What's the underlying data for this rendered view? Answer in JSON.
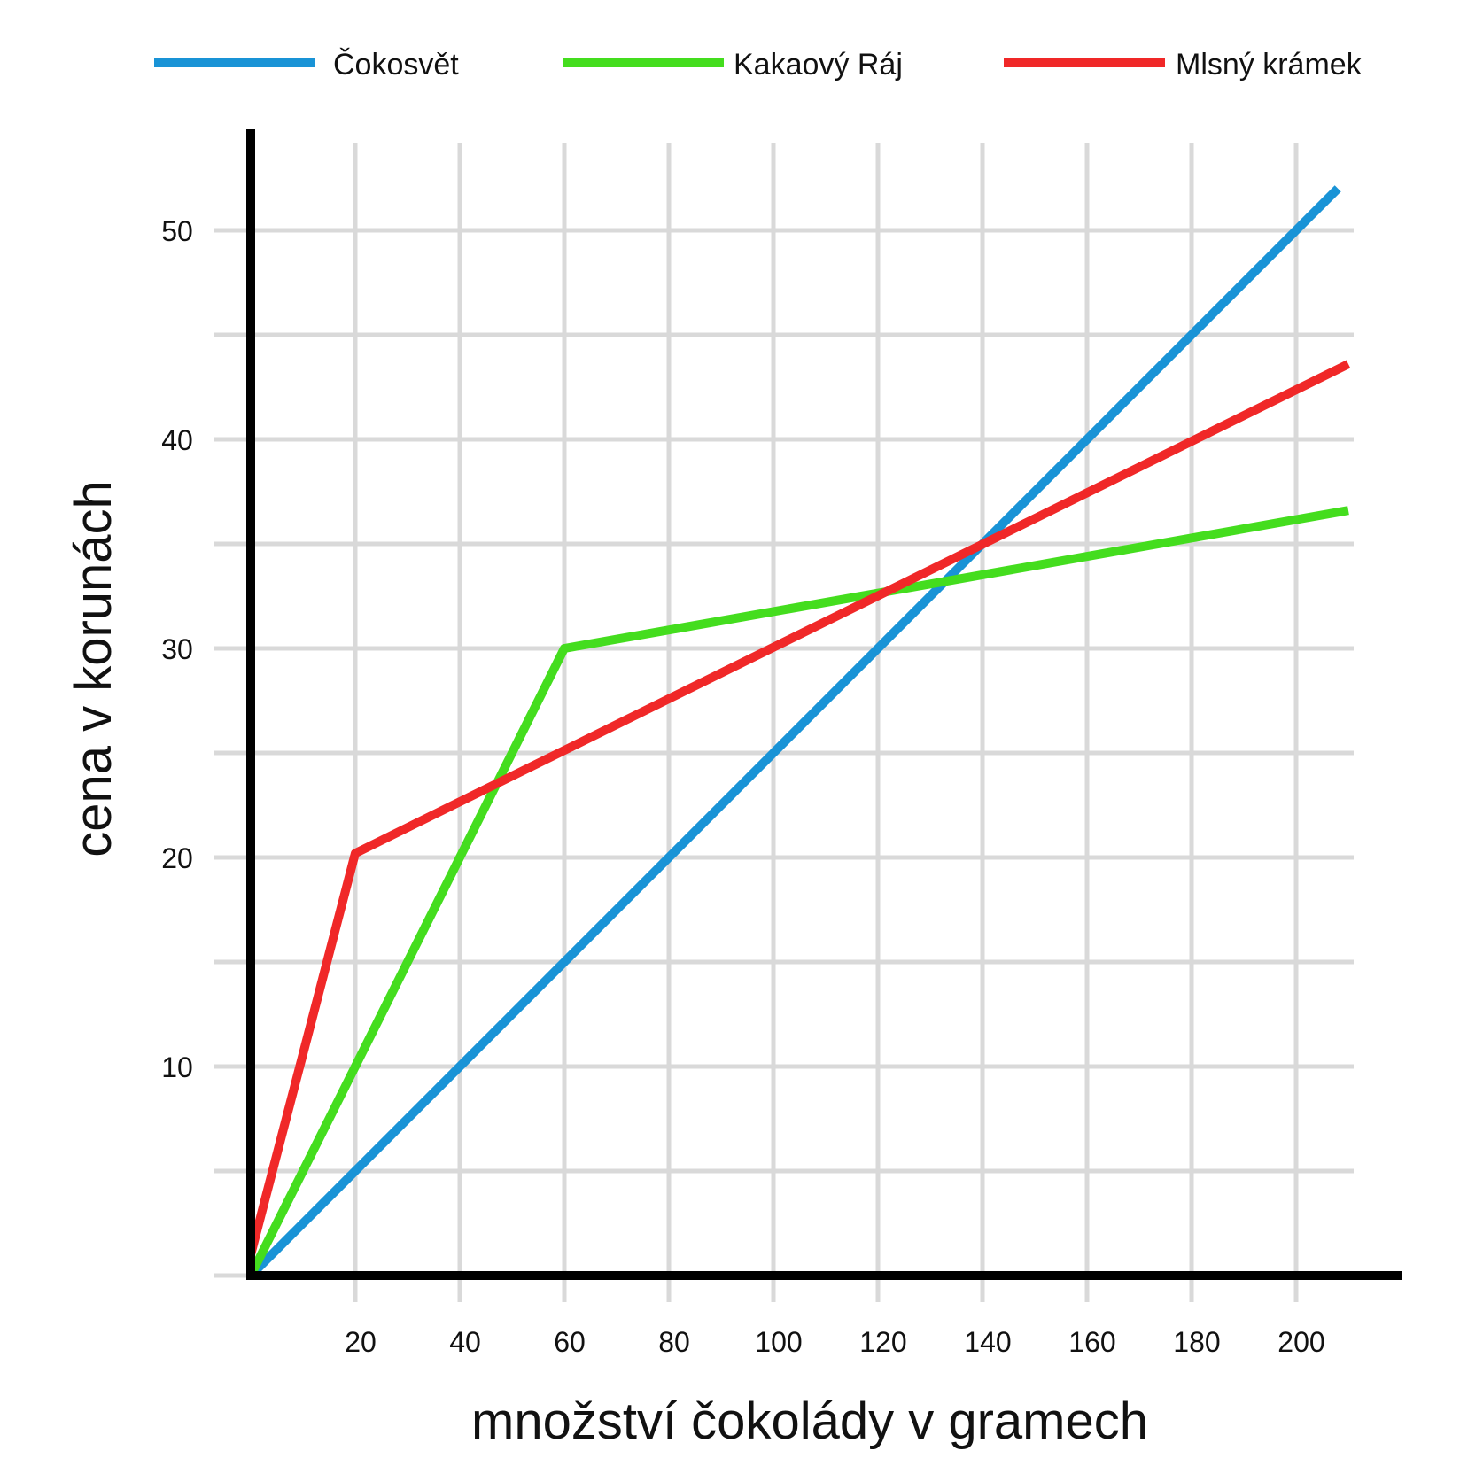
{
  "chart_data": {
    "type": "line",
    "title": "",
    "xlabel": "množství čokolády v gramech",
    "ylabel": "cena v korunách",
    "xlim": [
      0,
      220
    ],
    "ylim": [
      0,
      55
    ],
    "x_ticks": [
      20,
      40,
      60,
      80,
      100,
      120,
      140,
      160,
      180,
      200
    ],
    "y_ticks": [
      10,
      20,
      30,
      40,
      50
    ],
    "x_grid": [
      20,
      40,
      60,
      80,
      100,
      120,
      140,
      160,
      180,
      200
    ],
    "y_grid": [
      5,
      10,
      15,
      20,
      25,
      30,
      35,
      40,
      45,
      50
    ],
    "grid": true,
    "legend_position": "top",
    "series": [
      {
        "name": "Čokosvět",
        "color": "#1993d6",
        "points": [
          [
            0,
            0
          ],
          [
            208,
            52
          ]
        ]
      },
      {
        "name": "Kakaový Ráj",
        "color": "#44dd1e",
        "points": [
          [
            0,
            0
          ],
          [
            60,
            30
          ],
          [
            210,
            36.6
          ]
        ]
      },
      {
        "name": "Mlsný krámek",
        "color": "#f02828",
        "points": [
          [
            0,
            1
          ],
          [
            20,
            20.2
          ],
          [
            210,
            43.6
          ]
        ]
      }
    ]
  }
}
